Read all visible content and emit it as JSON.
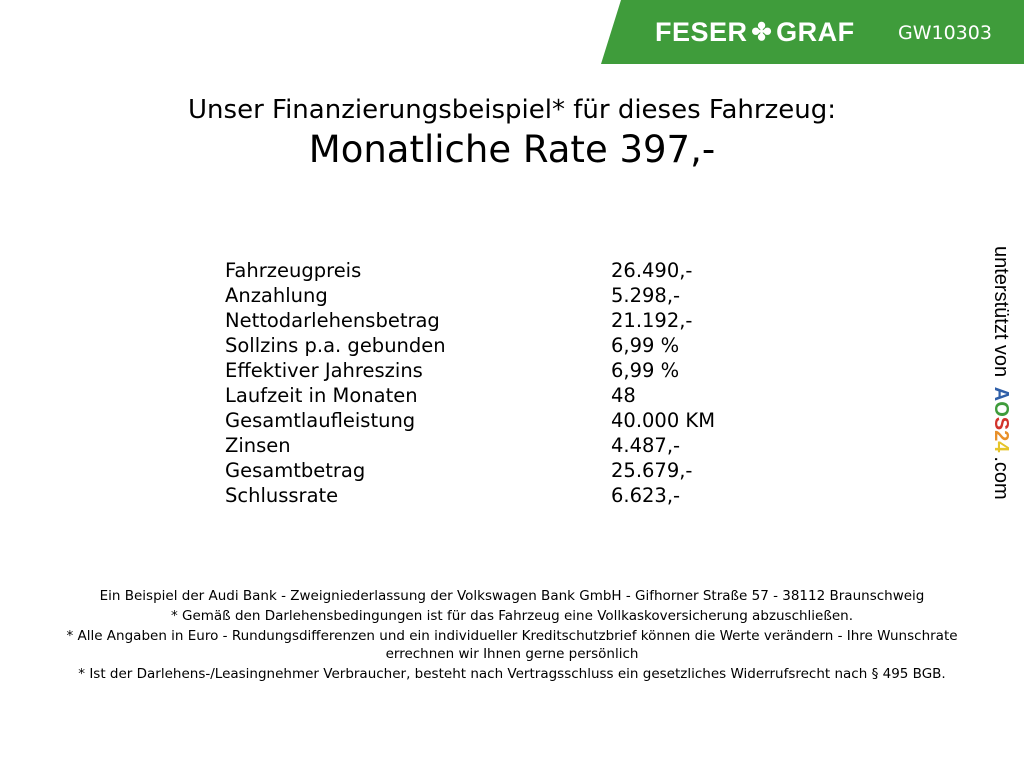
{
  "header": {
    "brand": "FESER",
    "brand2": "GRAF",
    "brand_icon": "clover-icon",
    "code": "GW10303",
    "color": "#3f9c3b"
  },
  "title": {
    "line1": "Unser Finanzierungsbeispiel* für dieses Fahrzeug:",
    "line2": "Monatliche Rate 397,-"
  },
  "rows": [
    {
      "label": "Fahrzeugpreis",
      "value": "26.490,-"
    },
    {
      "label": "Anzahlung",
      "value": "5.298,-"
    },
    {
      "label": "Nettodarlehensbetrag",
      "value": "21.192,-"
    },
    {
      "label": "Sollzins p.a. gebunden",
      "value": "6,99 %"
    },
    {
      "label": "Effektiver Jahreszins",
      "value": "6,99 %"
    },
    {
      "label": "Laufzeit in Monaten",
      "value": "48"
    },
    {
      "label": "Gesamtlaufleistung",
      "value": "40.000 KM"
    },
    {
      "label": "Zinsen",
      "value": "4.487,-"
    },
    {
      "label": "Gesamtbetrag",
      "value": "25.679,-"
    },
    {
      "label": "Schlussrate",
      "value": "6.623,-"
    }
  ],
  "side": {
    "text": "unterstützt von",
    "logo": [
      "A",
      "O",
      "S",
      "2",
      "4"
    ],
    "suffix": ".com"
  },
  "footer": [
    "Ein Beispiel der Audi Bank - Zweigniederlassung der Volkswagen Bank GmbH - Gifhorner Straße 57 - 38112 Braunschweig",
    "* Gemäß den Darlehensbedingungen ist für das Fahrzeug eine Vollkaskoversicherung abzuschließen.",
    "* Alle Angaben in Euro - Rundungsdifferenzen und ein individueller Kreditschutzbrief können die Werte verändern - Ihre Wunschrate errechnen wir Ihnen gerne persönlich",
    "* Ist der Darlehens-/Leasingnehmer Verbraucher, besteht nach Vertragsschluss ein gesetzliches Widerrufsrecht nach § 495 BGB."
  ]
}
